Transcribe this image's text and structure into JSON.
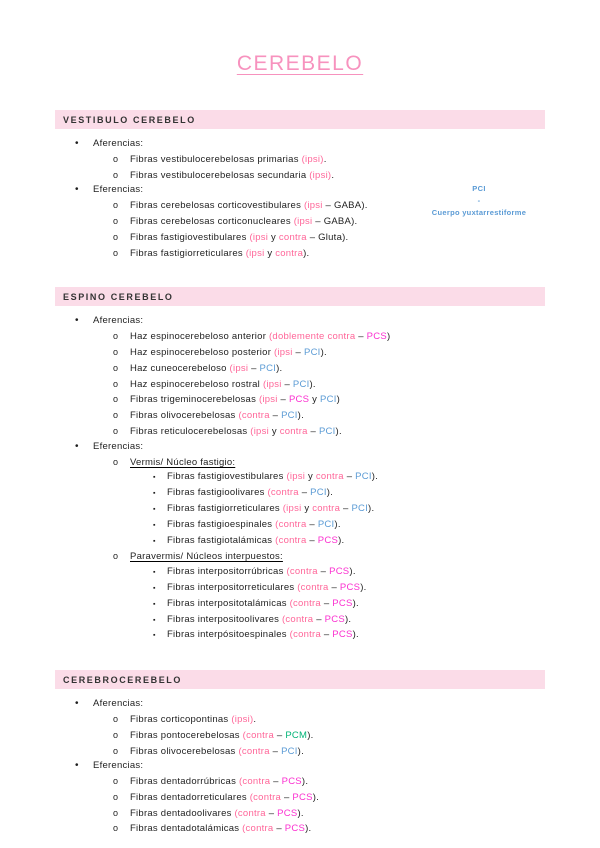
{
  "title": "CEREBELO",
  "side_note": [
    "PCI",
    "-",
    "Cuerpo yuxtarrestiforme"
  ],
  "colors": {
    "title_pink": "#f792be",
    "header_bg": "#fbdce8",
    "header_text": "#333333",
    "body": "#1f1f1f",
    "pink": "#ff6699",
    "magenta": "#fb30d0",
    "blue": "#5b9bd5",
    "green": "#00b377"
  },
  "bullets": {
    "1": "•",
    "2": "o",
    "3": "▪"
  },
  "sections": [
    {
      "id": "vestibulo-cerebelo",
      "title": "VESTIBULO CEREBELO",
      "items": [
        {
          "level": 1,
          "segments": [
            [
              "k",
              "Aferencias:"
            ]
          ]
        },
        {
          "level": 2,
          "segments": [
            [
              "k",
              "Fibras vestibulocerebelosas primarias "
            ],
            [
              "p",
              "(ipsi)"
            ],
            [
              "k",
              "."
            ]
          ]
        },
        {
          "level": 2,
          "segments": [
            [
              "k",
              "Fibras vestibulocerebelosas secundaria "
            ],
            [
              "p",
              "(ipsi)"
            ],
            [
              "k",
              "."
            ]
          ]
        },
        {
          "level": 1,
          "segments": [
            [
              "k",
              "Eferencias:"
            ]
          ]
        },
        {
          "level": 2,
          "segments": [
            [
              "k",
              "Fibras cerebelosas corticovestibulares "
            ],
            [
              "p",
              "(ipsi"
            ],
            [
              "k",
              " – GABA)."
            ]
          ]
        },
        {
          "level": 2,
          "segments": [
            [
              "k",
              "Fibras cerebelosas corticonucleares "
            ],
            [
              "p",
              "(ipsi"
            ],
            [
              "k",
              " – GABA)."
            ]
          ]
        },
        {
          "level": 2,
          "segments": [
            [
              "k",
              "Fibras fastigiovestibulares "
            ],
            [
              "p",
              "(ipsi"
            ],
            [
              "k",
              " y "
            ],
            [
              "p",
              "contra"
            ],
            [
              "k",
              " – Gluta)."
            ]
          ]
        },
        {
          "level": 2,
          "segments": [
            [
              "k",
              "Fibras fastigiorreticulares "
            ],
            [
              "p",
              "(ipsi"
            ],
            [
              "k",
              " y "
            ],
            [
              "p",
              "contra"
            ],
            [
              "k",
              ")."
            ]
          ]
        }
      ]
    },
    {
      "id": "espino-cerebelo",
      "title": "ESPINO CEREBELO",
      "items": [
        {
          "level": 1,
          "segments": [
            [
              "k",
              "Aferencias:"
            ]
          ]
        },
        {
          "level": 2,
          "segments": [
            [
              "k",
              "Haz espinocerebeloso anterior "
            ],
            [
              "p",
              "(doblemente contra"
            ],
            [
              "k",
              " – "
            ],
            [
              "m",
              "PCS"
            ],
            [
              "k",
              ")"
            ]
          ]
        },
        {
          "level": 2,
          "segments": [
            [
              "k",
              "Haz espinocerebeloso posterior "
            ],
            [
              "p",
              "(ipsi"
            ],
            [
              "k",
              " – "
            ],
            [
              "b",
              "PCI"
            ],
            [
              "k",
              ")."
            ]
          ]
        },
        {
          "level": 2,
          "segments": [
            [
              "k",
              "Haz cuneocerebeloso "
            ],
            [
              "p",
              "(ipsi"
            ],
            [
              "k",
              " – "
            ],
            [
              "b",
              "PCI"
            ],
            [
              "k",
              ")."
            ]
          ]
        },
        {
          "level": 2,
          "segments": [
            [
              "k",
              "Haz espinocerebeloso rostral "
            ],
            [
              "p",
              "(ipsi"
            ],
            [
              "k",
              " – "
            ],
            [
              "b",
              "PCI"
            ],
            [
              "k",
              ")."
            ]
          ]
        },
        {
          "level": 2,
          "segments": [
            [
              "k",
              "Fibras trigeminocerebelosas "
            ],
            [
              "p",
              "(ipsi"
            ],
            [
              "k",
              " – "
            ],
            [
              "m",
              "PCS"
            ],
            [
              "k",
              " y "
            ],
            [
              "b",
              "PCI"
            ],
            [
              "k",
              ")"
            ]
          ]
        },
        {
          "level": 2,
          "segments": [
            [
              "k",
              "Fibras olivocerebelosas "
            ],
            [
              "p",
              "(contra"
            ],
            [
              "k",
              " – "
            ],
            [
              "b",
              "PCI"
            ],
            [
              "k",
              ")."
            ]
          ]
        },
        {
          "level": 2,
          "segments": [
            [
              "k",
              "Fibras reticulocerebelosas "
            ],
            [
              "p",
              "(ipsi"
            ],
            [
              "k",
              " y "
            ],
            [
              "p",
              "contra"
            ],
            [
              "k",
              " – "
            ],
            [
              "b",
              "PCI"
            ],
            [
              "k",
              ")."
            ]
          ]
        },
        {
          "level": 1,
          "segments": [
            [
              "k",
              "Eferencias:"
            ]
          ]
        },
        {
          "level": 2,
          "underline": true,
          "segments": [
            [
              "k",
              "Vermis/ Núcleo fastigio:"
            ]
          ]
        },
        {
          "level": 3,
          "segments": [
            [
              "k",
              "Fibras fastigiovestibulares "
            ],
            [
              "p",
              "(ipsi"
            ],
            [
              "k",
              " y "
            ],
            [
              "p",
              "contra"
            ],
            [
              "k",
              " – "
            ],
            [
              "b",
              "PCI"
            ],
            [
              "k",
              ")."
            ]
          ]
        },
        {
          "level": 3,
          "segments": [
            [
              "k",
              "Fibras fastigioolivares "
            ],
            [
              "p",
              "(contra"
            ],
            [
              "k",
              " – "
            ],
            [
              "b",
              "PCI"
            ],
            [
              "k",
              ")."
            ]
          ]
        },
        {
          "level": 3,
          "segments": [
            [
              "k",
              "Fibras fastigiorreticulares "
            ],
            [
              "p",
              "(ipsi"
            ],
            [
              "k",
              " y "
            ],
            [
              "p",
              "contra"
            ],
            [
              "k",
              " – "
            ],
            [
              "b",
              "PCI"
            ],
            [
              "k",
              ")."
            ]
          ]
        },
        {
          "level": 3,
          "segments": [
            [
              "k",
              "Fibras fastigioespinales "
            ],
            [
              "p",
              "(contra"
            ],
            [
              "k",
              " – "
            ],
            [
              "b",
              "PCI"
            ],
            [
              "k",
              ")."
            ]
          ]
        },
        {
          "level": 3,
          "segments": [
            [
              "k",
              "Fibras fastigiotalámicas "
            ],
            [
              "p",
              "(contra"
            ],
            [
              "k",
              " – "
            ],
            [
              "m",
              "PCS"
            ],
            [
              "k",
              ")."
            ]
          ]
        },
        {
          "level": 2,
          "underline": true,
          "segments": [
            [
              "k",
              "Paravermis/ Núcleos interpuestos:"
            ]
          ]
        },
        {
          "level": 3,
          "segments": [
            [
              "k",
              "Fibras interpositorrúbricas "
            ],
            [
              "p",
              "(contra"
            ],
            [
              "k",
              " – "
            ],
            [
              "m",
              "PCS"
            ],
            [
              "k",
              ")."
            ]
          ]
        },
        {
          "level": 3,
          "segments": [
            [
              "k",
              "Fibras interpositorreticulares "
            ],
            [
              "p",
              "(contra"
            ],
            [
              "k",
              " – "
            ],
            [
              "m",
              "PCS"
            ],
            [
              "k",
              ")."
            ]
          ]
        },
        {
          "level": 3,
          "segments": [
            [
              "k",
              "Fibras interpositotalámicas "
            ],
            [
              "p",
              "(contra"
            ],
            [
              "k",
              " – "
            ],
            [
              "m",
              "PCS"
            ],
            [
              "k",
              ")."
            ]
          ]
        },
        {
          "level": 3,
          "segments": [
            [
              "k",
              "Fibras interpositoolivares "
            ],
            [
              "p",
              "(contra"
            ],
            [
              "k",
              " – "
            ],
            [
              "m",
              "PCS"
            ],
            [
              "k",
              ")."
            ]
          ]
        },
        {
          "level": 3,
          "segments": [
            [
              "k",
              "Fibras interpósitoespinales "
            ],
            [
              "p",
              "(contra"
            ],
            [
              "k",
              " – "
            ],
            [
              "m",
              "PCS"
            ],
            [
              "k",
              ")."
            ]
          ]
        }
      ]
    },
    {
      "id": "cerebrocerebelo",
      "title": "CEREBROCEREBELO",
      "items": [
        {
          "level": 1,
          "segments": [
            [
              "k",
              "Aferencias:"
            ]
          ]
        },
        {
          "level": 2,
          "segments": [
            [
              "k",
              "Fibras corticopontinas "
            ],
            [
              "p",
              "(ipsi)"
            ],
            [
              "k",
              "."
            ]
          ]
        },
        {
          "level": 2,
          "segments": [
            [
              "k",
              "Fibras pontocerebelosas "
            ],
            [
              "p",
              "(contra"
            ],
            [
              "k",
              " – "
            ],
            [
              "g",
              "PCM"
            ],
            [
              "k",
              ")."
            ]
          ]
        },
        {
          "level": 2,
          "segments": [
            [
              "k",
              "Fibras olivocerebelosas "
            ],
            [
              "p",
              "(contra"
            ],
            [
              "k",
              " – "
            ],
            [
              "b",
              "PCI"
            ],
            [
              "k",
              ")."
            ]
          ]
        },
        {
          "level": 1,
          "segments": [
            [
              "k",
              "Eferencias:"
            ]
          ]
        },
        {
          "level": 2,
          "segments": [
            [
              "k",
              "Fibras dentadorrúbricas "
            ],
            [
              "p",
              "(contra"
            ],
            [
              "k",
              " – "
            ],
            [
              "m",
              "PCS"
            ],
            [
              "k",
              ")."
            ]
          ]
        },
        {
          "level": 2,
          "segments": [
            [
              "k",
              "Fibras dentadorreticulares "
            ],
            [
              "p",
              "(contra"
            ],
            [
              "k",
              " – "
            ],
            [
              "m",
              "PCS"
            ],
            [
              "k",
              ")."
            ]
          ]
        },
        {
          "level": 2,
          "segments": [
            [
              "k",
              "Fibras dentadoolivares "
            ],
            [
              "p",
              "(contra"
            ],
            [
              "k",
              " – "
            ],
            [
              "m",
              "PCS"
            ],
            [
              "k",
              ")."
            ]
          ]
        },
        {
          "level": 2,
          "segments": [
            [
              "k",
              "Fibras dentadotalámicas "
            ],
            [
              "p",
              "(contra"
            ],
            [
              "k",
              " – "
            ],
            [
              "m",
              "PCS"
            ],
            [
              "k",
              ")."
            ]
          ]
        }
      ]
    }
  ]
}
